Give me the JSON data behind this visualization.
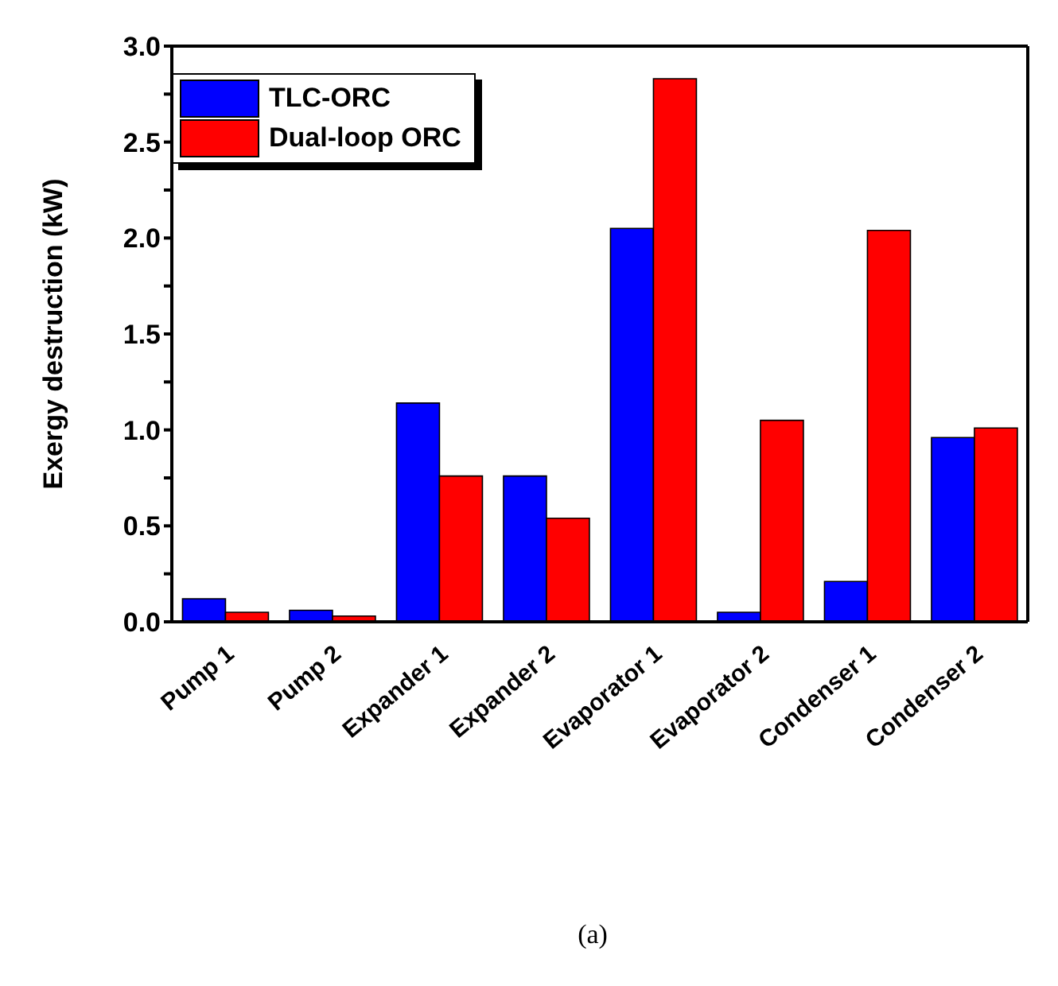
{
  "chart_data": {
    "type": "bar",
    "ylabel": "Exergy destruction (kW)",
    "categories": [
      "Pump 1",
      "Pump 2",
      "Expander 1",
      "Expander 2",
      "Evaporator 1",
      "Evaporator 2",
      "Condenser 1",
      "Condenser 2"
    ],
    "series": [
      {
        "name": "TLC-ORC",
        "color": "#0000ff",
        "values": [
          0.12,
          0.06,
          1.14,
          0.76,
          2.05,
          0.05,
          0.21,
          0.96
        ]
      },
      {
        "name": "Dual-loop ORC",
        "color": "#ff0000",
        "values": [
          0.05,
          0.03,
          0.76,
          0.54,
          2.83,
          1.05,
          2.04,
          1.01
        ]
      }
    ],
    "ylim": [
      0,
      3
    ],
    "yticks": [
      {
        "value": 0,
        "label": "0.0"
      },
      {
        "value": 0.25,
        "label": null
      },
      {
        "value": 0.5,
        "label": "0.5"
      },
      {
        "value": 0.75,
        "label": null
      },
      {
        "value": 1,
        "label": "1.0"
      },
      {
        "value": 1.25,
        "label": null
      },
      {
        "value": 1.5,
        "label": "1.5"
      },
      {
        "value": 1.75,
        "label": null
      },
      {
        "value": 2,
        "label": "2.0"
      },
      {
        "value": 2.25,
        "label": null
      },
      {
        "value": 2.5,
        "label": "2.5"
      },
      {
        "value": 2.75,
        "label": null
      },
      {
        "value": 3,
        "label": "3.0"
      }
    ],
    "legend": "top left",
    "grid": false,
    "annotations": [
      "(a)"
    ]
  }
}
